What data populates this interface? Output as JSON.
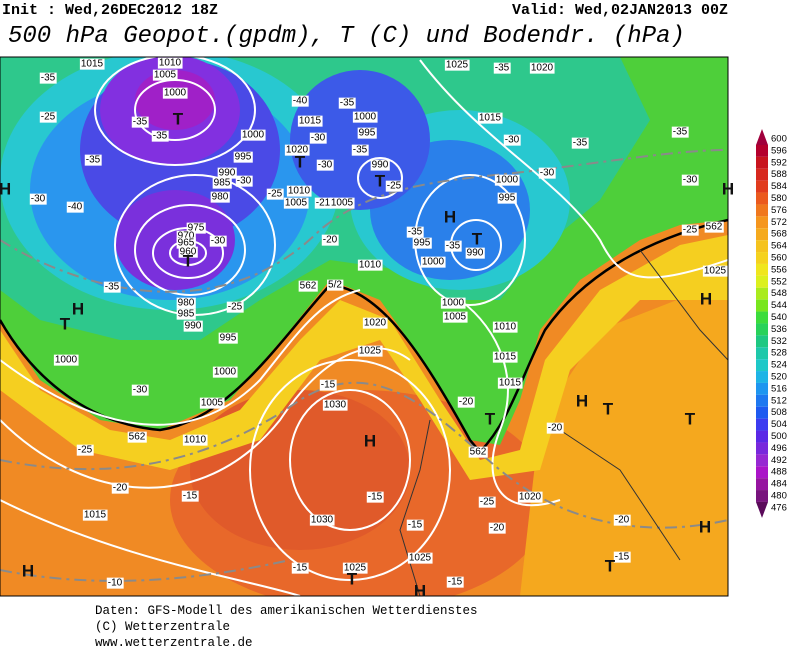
{
  "header": {
    "init": "Init : Wed,26DEC2012 18Z",
    "valid": "Valid: Wed,02JAN2013 00Z",
    "title": "500 hPa Geopot.(gpdm), T (C) und Bodendr. (hPa)"
  },
  "legend": {
    "levels": [
      600,
      596,
      592,
      588,
      584,
      580,
      576,
      572,
      568,
      564,
      560,
      556,
      552,
      548,
      544,
      540,
      536,
      532,
      528,
      524,
      520,
      516,
      512,
      508,
      504,
      500,
      496,
      492,
      488,
      484,
      480,
      476
    ],
    "colors": [
      "#a0003c",
      "#b4002d",
      "#c8141e",
      "#d7281e",
      "#e13c1e",
      "#eb5a1e",
      "#f0781e",
      "#f5961e",
      "#f5aa1e",
      "#f5c31e",
      "#f5d21e",
      "#f0e61e",
      "#dcf01e",
      "#aaeb1e",
      "#78e61e",
      "#3cdc3c",
      "#28d25a",
      "#1ec882",
      "#1ec8aa",
      "#1ec8c8",
      "#1eb4e6",
      "#1e96f0",
      "#1e78f0",
      "#1e5af0",
      "#3c3cf0",
      "#5a28e6",
      "#7828dc",
      "#9628d2",
      "#aa14c8",
      "#9614a0",
      "#78147d",
      "#5a0a5a"
    ]
  },
  "map": {
    "labels": [
      "1015",
      "1010",
      "1005",
      "1000",
      "T",
      "-35",
      "-25",
      "-35",
      "-35",
      "-35",
      "-30",
      "-40",
      "H",
      "1000",
      "995",
      "990",
      "985",
      "-30",
      "980",
      "975",
      "970",
      "965",
      "960",
      "T",
      "-30",
      "-35",
      "H",
      "T",
      "980",
      "985",
      "990",
      "-25",
      "995",
      "1000",
      "1000",
      "-30",
      "1005",
      "1010",
      "-25",
      "-20",
      "-15",
      "1015",
      "-10",
      "H",
      "-40",
      "T",
      "1015",
      "1020",
      "-30",
      "-30",
      "1010",
      "1005",
      "-25",
      "-21",
      "1005",
      "-35",
      "1000",
      "995",
      "-35",
      "990",
      "T",
      "-25",
      "-20",
      "1010",
      "5/2",
      "1020",
      "1025",
      "-15",
      "1030",
      "H",
      "-15",
      "1030",
      "-15",
      "-15",
      "1025",
      "1025",
      "T",
      "-15",
      "H",
      "1025",
      "-35",
      "1020",
      "1015",
      "-30",
      "-35",
      "1000",
      "-30",
      "995",
      "H",
      "-35",
      "995",
      "-35",
      "T",
      "990",
      "1000",
      "1000",
      "1005",
      "1010",
      "1015",
      "1015",
      "-20",
      "T",
      "562",
      "-20",
      "-25",
      "-20",
      "1020",
      "H",
      "T",
      "T",
      "-20",
      "-15",
      "T",
      "H",
      "-35",
      "-30",
      "562",
      "-25",
      "1025",
      "H",
      "H",
      "562",
      "562"
    ]
  },
  "footer": {
    "lines": [
      "Daten: GFS-Modell des amerikanischen Wetterdienstes",
      "(C) Wetterzentrale",
      "www.wetterzentrale.de"
    ]
  }
}
